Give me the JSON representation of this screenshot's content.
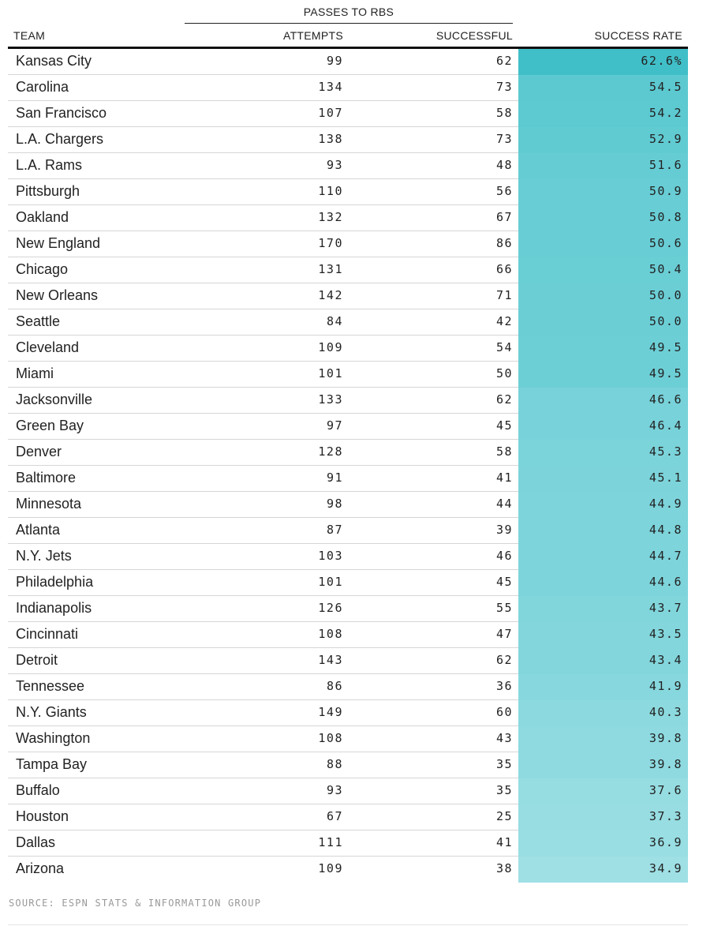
{
  "chart_data": {
    "type": "table",
    "group_header": "PASSES TO RBS",
    "columns": [
      "TEAM",
      "ATTEMPTS",
      "SUCCESSFUL",
      "SUCCESS RATE"
    ],
    "rows": [
      {
        "team": "Kansas City",
        "attempts": "99",
        "successful": "62",
        "rate": "62.6%"
      },
      {
        "team": "Carolina",
        "attempts": "134",
        "successful": "73",
        "rate": "54.5"
      },
      {
        "team": "San Francisco",
        "attempts": "107",
        "successful": "58",
        "rate": "54.2"
      },
      {
        "team": "L.A. Chargers",
        "attempts": "138",
        "successful": "73",
        "rate": "52.9"
      },
      {
        "team": "L.A. Rams",
        "attempts": "93",
        "successful": "48",
        "rate": "51.6"
      },
      {
        "team": "Pittsburgh",
        "attempts": "110",
        "successful": "56",
        "rate": "50.9"
      },
      {
        "team": "Oakland",
        "attempts": "132",
        "successful": "67",
        "rate": "50.8"
      },
      {
        "team": "New England",
        "attempts": "170",
        "successful": "86",
        "rate": "50.6"
      },
      {
        "team": "Chicago",
        "attempts": "131",
        "successful": "66",
        "rate": "50.4"
      },
      {
        "team": "New Orleans",
        "attempts": "142",
        "successful": "71",
        "rate": "50.0"
      },
      {
        "team": "Seattle",
        "attempts": "84",
        "successful": "42",
        "rate": "50.0"
      },
      {
        "team": "Cleveland",
        "attempts": "109",
        "successful": "54",
        "rate": "49.5"
      },
      {
        "team": "Miami",
        "attempts": "101",
        "successful": "50",
        "rate": "49.5"
      },
      {
        "team": "Jacksonville",
        "attempts": "133",
        "successful": "62",
        "rate": "46.6"
      },
      {
        "team": "Green Bay",
        "attempts": "97",
        "successful": "45",
        "rate": "46.4"
      },
      {
        "team": "Denver",
        "attempts": "128",
        "successful": "58",
        "rate": "45.3"
      },
      {
        "team": "Baltimore",
        "attempts": "91",
        "successful": "41",
        "rate": "45.1"
      },
      {
        "team": "Minnesota",
        "attempts": "98",
        "successful": "44",
        "rate": "44.9"
      },
      {
        "team": "Atlanta",
        "attempts": "87",
        "successful": "39",
        "rate": "44.8"
      },
      {
        "team": "N.Y. Jets",
        "attempts": "103",
        "successful": "46",
        "rate": "44.7"
      },
      {
        "team": "Philadelphia",
        "attempts": "101",
        "successful": "45",
        "rate": "44.6"
      },
      {
        "team": "Indianapolis",
        "attempts": "126",
        "successful": "55",
        "rate": "43.7"
      },
      {
        "team": "Cincinnati",
        "attempts": "108",
        "successful": "47",
        "rate": "43.5"
      },
      {
        "team": "Detroit",
        "attempts": "143",
        "successful": "62",
        "rate": "43.4"
      },
      {
        "team": "Tennessee",
        "attempts": "86",
        "successful": "36",
        "rate": "41.9"
      },
      {
        "team": "N.Y. Giants",
        "attempts": "149",
        "successful": "60",
        "rate": "40.3"
      },
      {
        "team": "Washington",
        "attempts": "108",
        "successful": "43",
        "rate": "39.8"
      },
      {
        "team": "Tampa Bay",
        "attempts": "88",
        "successful": "35",
        "rate": "39.8"
      },
      {
        "team": "Buffalo",
        "attempts": "93",
        "successful": "35",
        "rate": "37.6"
      },
      {
        "team": "Houston",
        "attempts": "67",
        "successful": "25",
        "rate": "37.3"
      },
      {
        "team": "Dallas",
        "attempts": "111",
        "successful": "41",
        "rate": "36.9"
      },
      {
        "team": "Arizona",
        "attempts": "109",
        "successful": "38",
        "rate": "34.9"
      }
    ],
    "rate_color_max": "#40bfc8",
    "rate_color_min": "#9fe0e5"
  },
  "source": "SOURCE: ESPN STATS & INFORMATION GROUP"
}
